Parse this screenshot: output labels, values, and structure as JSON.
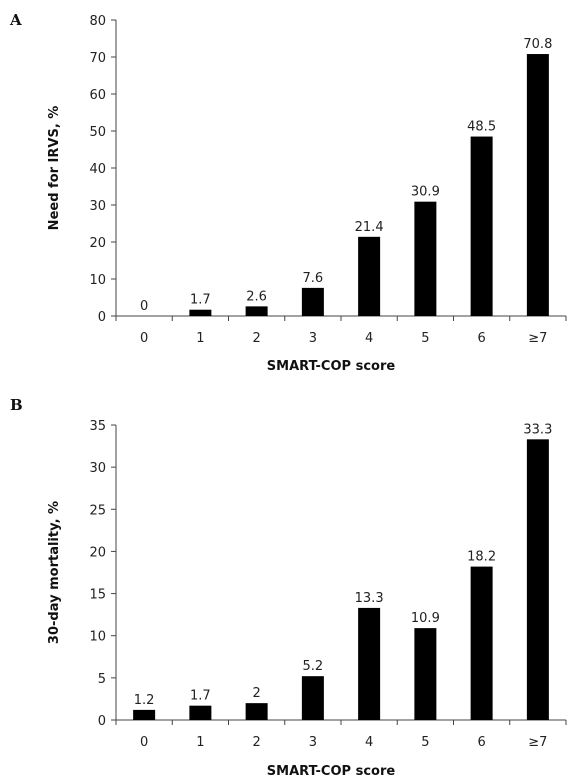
{
  "chart_data": [
    {
      "type": "bar",
      "panel": "A",
      "categories": [
        "0",
        "1",
        "2",
        "3",
        "4",
        "5",
        "6",
        "≥7"
      ],
      "values": [
        0,
        1.7,
        2.6,
        7.6,
        21.4,
        30.9,
        48.5,
        70.8
      ],
      "value_labels": [
        "0",
        "1.7",
        "2.6",
        "7.6",
        "21.4",
        "30.9",
        "48.5",
        "70.8"
      ],
      "xlabel": "SMART-COP score",
      "ylabel": "Need for IRVS, %",
      "ylim": [
        0,
        80
      ],
      "yticks": [
        "0",
        "10",
        "20",
        "30",
        "40",
        "50",
        "60",
        "70",
        "80"
      ],
      "grid": false,
      "bar_color": "#000000"
    },
    {
      "type": "bar",
      "panel": "B",
      "categories": [
        "0",
        "1",
        "2",
        "3",
        "4",
        "5",
        "6",
        "≥7"
      ],
      "values": [
        1.2,
        1.7,
        2,
        5.2,
        13.3,
        10.9,
        18.2,
        33.3
      ],
      "value_labels": [
        "1.2",
        "1.7",
        "2",
        "5.2",
        "13.3",
        "10.9",
        "18.2",
        "33.3"
      ],
      "xlabel": "SMART-COP score",
      "ylabel": "30-day mortality, %",
      "ylim": [
        0,
        35
      ],
      "yticks": [
        "0",
        "5",
        "10",
        "15",
        "20",
        "25",
        "30",
        "35"
      ],
      "grid": false,
      "bar_color": "#000000"
    }
  ]
}
